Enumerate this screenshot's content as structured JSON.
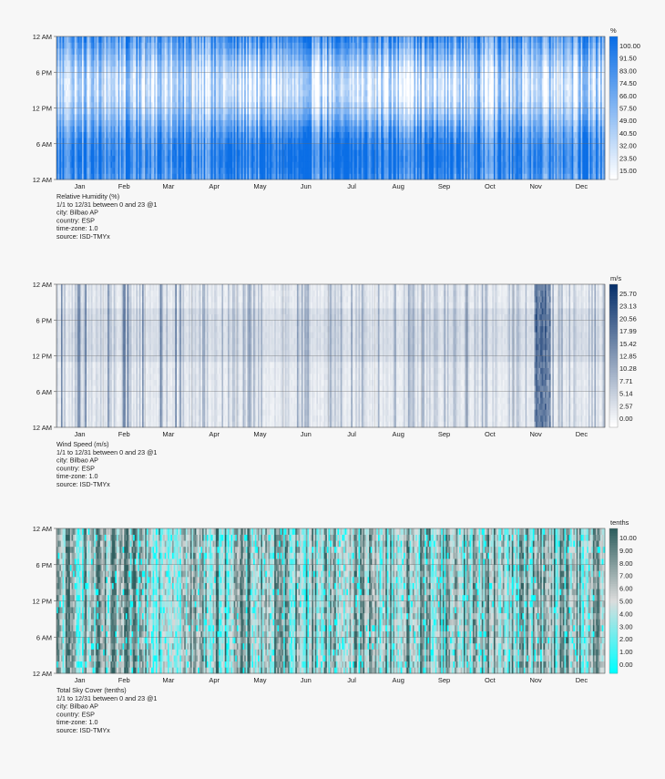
{
  "chart_data": [
    {
      "type": "heatmap",
      "variable": "relative_humidity",
      "ylabels": [
        "12 AM",
        "6 PM",
        "12 PM",
        "6 AM",
        "12 AM"
      ],
      "months": [
        "Jan",
        "Feb",
        "Mar",
        "Apr",
        "May",
        "Jun",
        "Jul",
        "Aug",
        "Sep",
        "Oct",
        "Nov",
        "Dec"
      ],
      "legend_unit": "%",
      "legend_ticks": [
        "100.00",
        "91.50",
        "83.00",
        "74.50",
        "66.00",
        "57.50",
        "49.00",
        "40.50",
        "32.00",
        "23.50",
        "15.00"
      ],
      "value_range": [
        15,
        100
      ],
      "colors": [
        "#ffffff",
        "#0a6ee6"
      ],
      "caption": [
        "Relative Humidity (%)",
        "1/1 to 12/31 between 0 and 23 @1",
        "city: Bilbao AP",
        "country: ESP",
        "time-zone: 1.0",
        "source: ISD-TMYx"
      ],
      "grid": true
    },
    {
      "type": "heatmap",
      "variable": "wind_speed",
      "ylabels": [
        "12 AM",
        "6 PM",
        "12 PM",
        "6 AM",
        "12 AM"
      ],
      "months": [
        "Jan",
        "Feb",
        "Mar",
        "Apr",
        "May",
        "Jun",
        "Jul",
        "Aug",
        "Sep",
        "Oct",
        "Nov",
        "Dec"
      ],
      "legend_unit": "m/s",
      "legend_ticks": [
        "25.70",
        "23.13",
        "20.56",
        "17.99",
        "15.42",
        "12.85",
        "10.28",
        "7.71",
        "5.14",
        "2.57",
        "0.00"
      ],
      "value_range": [
        0,
        25.7
      ],
      "colors": [
        "#ffffff",
        "#08306b"
      ],
      "caption": [
        "Wind Speed (m/s)",
        "1/1 to 12/31 between 0 and 23 @1",
        "city: Bilbao AP",
        "country: ESP",
        "time-zone: 1.0",
        "source: ISD-TMYx"
      ],
      "grid": true
    },
    {
      "type": "heatmap",
      "variable": "total_sky_cover",
      "ylabels": [
        "12 AM",
        "6 PM",
        "12 PM",
        "6 AM",
        "12 AM"
      ],
      "months": [
        "Jan",
        "Feb",
        "Mar",
        "Apr",
        "May",
        "Jun",
        "Jul",
        "Aug",
        "Sep",
        "Oct",
        "Nov",
        "Dec"
      ],
      "legend_unit": "tenths",
      "legend_ticks": [
        "10.00",
        "9.00",
        "8.00",
        "7.00",
        "6.00",
        "5.00",
        "4.00",
        "3.00",
        "2.00",
        "1.00",
        "0.00"
      ],
      "value_range": [
        0,
        10
      ],
      "colors": [
        "#00ffff",
        "#dcdcdc",
        "#2f5f5f"
      ],
      "caption": [
        "Total Sky Cover (tenths)",
        "1/1 to 12/31 between 0 and 23 @1",
        "city: Bilbao AP",
        "country: ESP",
        "time-zone: 1.0",
        "source: ISD-TMYx"
      ],
      "grid": true
    }
  ]
}
